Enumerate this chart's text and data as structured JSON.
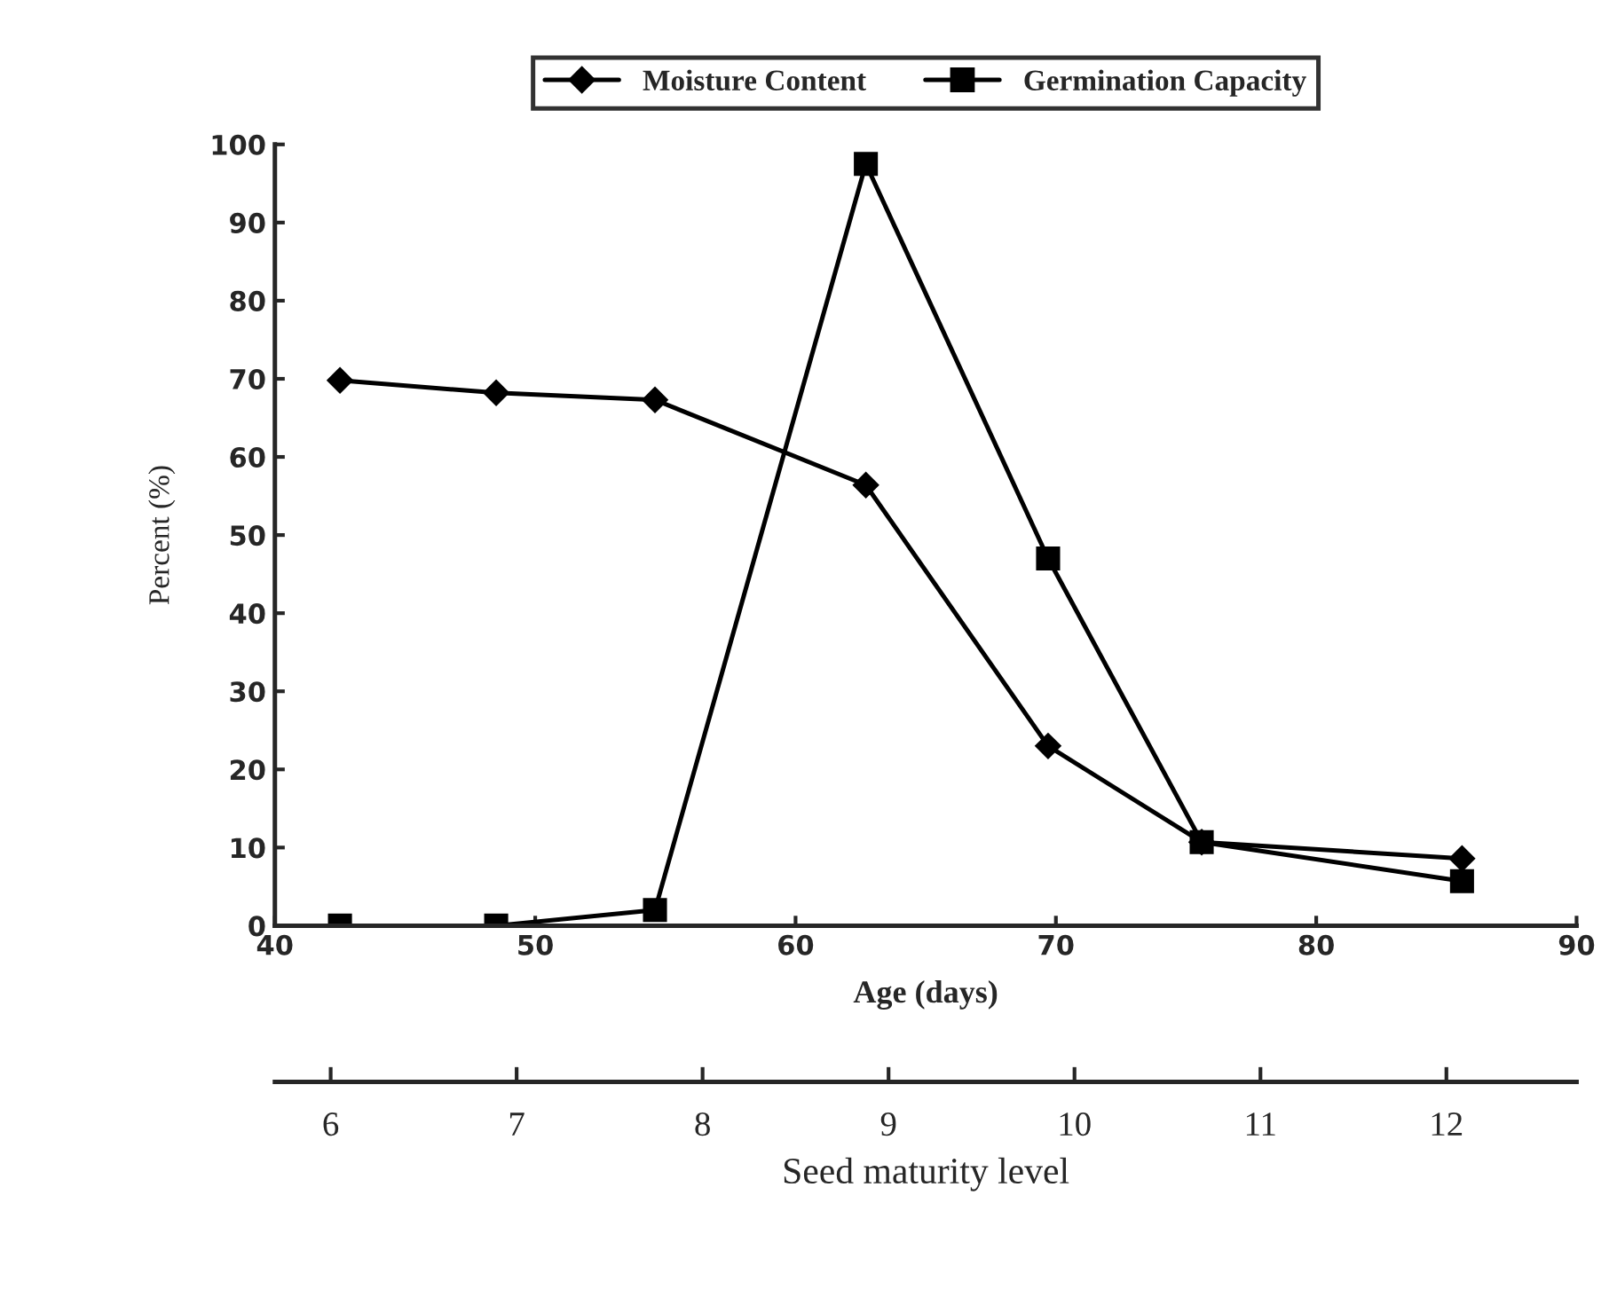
{
  "chart_data": {
    "type": "line",
    "xlabel": "Age (days)",
    "ylabel": "Percent (%)",
    "x2label": "Seed maturity level",
    "xlim": [
      40,
      90
    ],
    "xticks": [
      40,
      50,
      60,
      70,
      80,
      90
    ],
    "ylim": [
      0,
      100
    ],
    "yticks": [
      0,
      10,
      20,
      30,
      40,
      50,
      60,
      70,
      80,
      90,
      100
    ],
    "x2lim": [
      5.7,
      12.7
    ],
    "x2ticks": [
      6,
      7,
      8,
      9,
      10,
      11,
      12
    ],
    "x": [
      42.5,
      48.5,
      54.6,
      62.7,
      69.7,
      75.6,
      85.6
    ],
    "series": [
      {
        "name": "Moisture Content",
        "color": "#000000",
        "marker": "diamond",
        "values": [
          69.8,
          68.2,
          67.3,
          56.4,
          23.0,
          10.7,
          8.6
        ]
      },
      {
        "name": "Germination Capacity",
        "color": "#000000",
        "marker": "square",
        "values": [
          0,
          0,
          2.0,
          97.5,
          47,
          10.7,
          5.7
        ]
      }
    ],
    "legend": "top",
    "grid": false,
    "line_style": "solid"
  }
}
